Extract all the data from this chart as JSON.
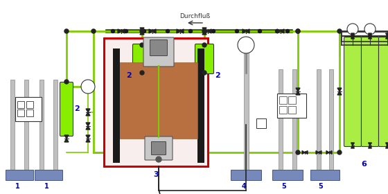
{
  "background_color": "#ffffff",
  "green_line_color": "#7FCC00",
  "dark_line_color": "#2d2d2d",
  "red_box_color": "#cc0000",
  "blue_label_color": "#0000bb",
  "gray_color": "#a0a0a0",
  "dark_gray": "#606060",
  "blue_base_color": "#7788bb",
  "tank_green": "#88ee00",
  "gas_green": "#aaee44",
  "durchfluss_text": "Durchfluß"
}
